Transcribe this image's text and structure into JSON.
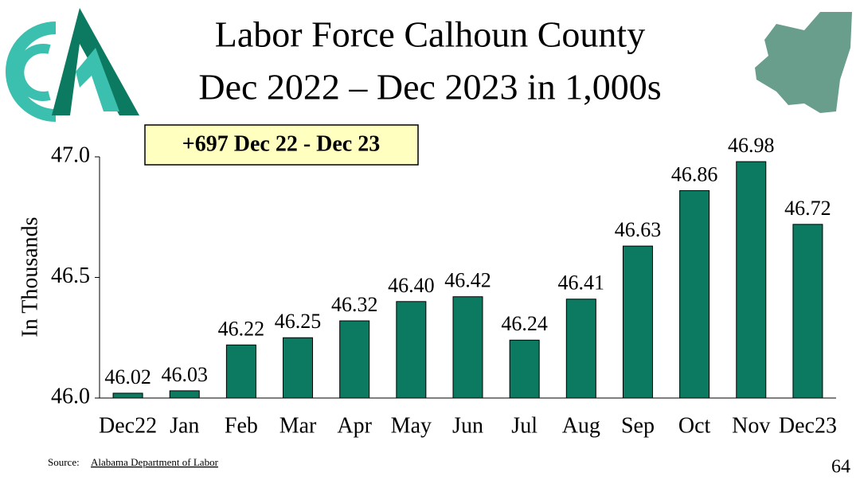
{
  "chart_data": {
    "type": "bar",
    "title": [
      "Labor Force Calhoun County",
      "Dec 2022 – Dec 2023 in 1,000s"
    ],
    "annotation": "+697 Dec 22 - Dec 23",
    "ylabel": "In Thousands",
    "categories": [
      "Dec22",
      "Jan",
      "Feb",
      "Mar",
      "Apr",
      "May",
      "Jun",
      "Jul",
      "Aug",
      "Sep",
      "Oct",
      "Nov",
      "Dec23"
    ],
    "values": [
      46.02,
      46.03,
      46.22,
      46.25,
      46.32,
      46.4,
      46.42,
      46.24,
      46.41,
      46.63,
      46.86,
      46.98,
      46.72
    ],
    "value_labels": [
      "46.02",
      "46.03",
      "46.22",
      "46.25",
      "46.32",
      "46.40",
      "46.42",
      "46.24",
      "46.41",
      "46.63",
      "46.86",
      "46.98",
      "46.72"
    ],
    "color": "#0b7a60",
    "ylim": [
      46.0,
      47.0
    ],
    "yticks": [
      {
        "value": 46.0,
        "label": "46.0"
      },
      {
        "value": 46.5,
        "label": "46.5"
      },
      {
        "value": 47.0,
        "label": "47.0"
      }
    ],
    "grid": false,
    "source_prefix": "Source:",
    "source_link": "Alabama Department of Labor",
    "page_number": "64"
  }
}
